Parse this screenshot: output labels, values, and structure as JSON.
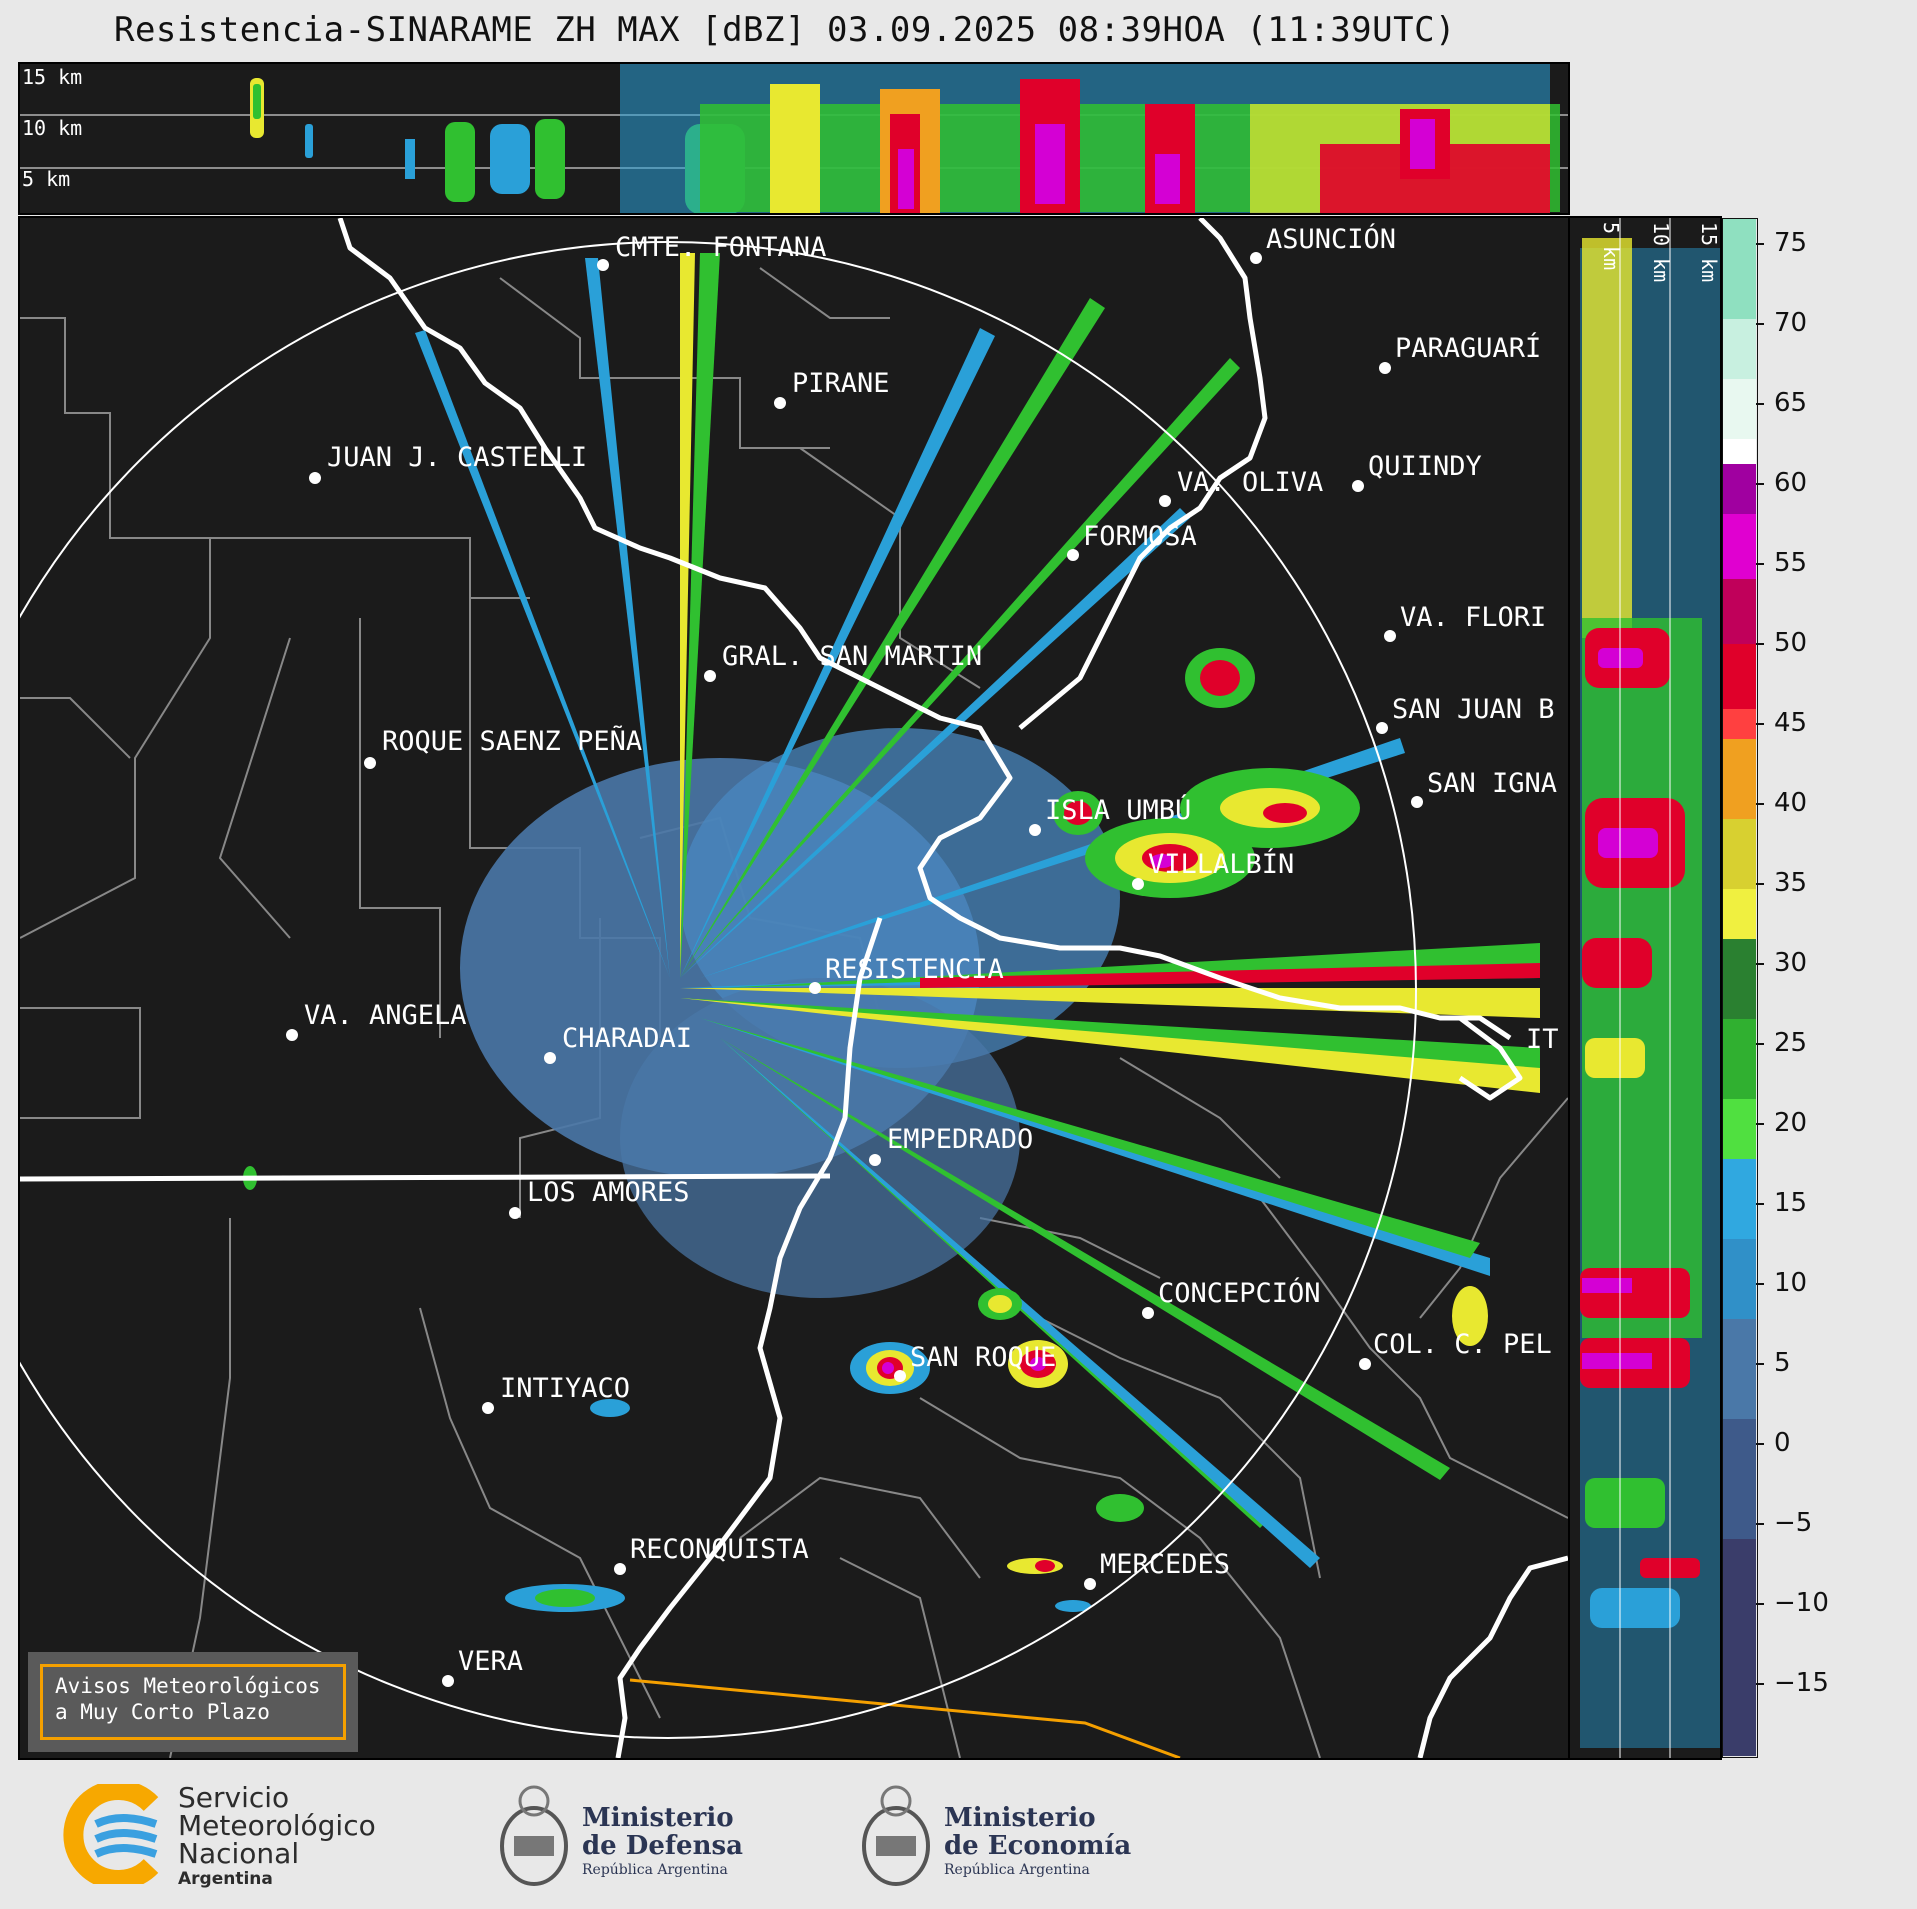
{
  "title": "Resistencia-SINARAME ZH MAX [dBZ] 03.09.2025 08:39HOA (11:39UTC)",
  "height_labels": [
    "15 km",
    "10 km",
    "5 km"
  ],
  "cities": [
    {
      "name": "CMTE. FONTANA"
    },
    {
      "name": "PIRANE"
    },
    {
      "name": "JUAN J. CASTELLI"
    },
    {
      "name": "GRAL. SAN MARTIN"
    },
    {
      "name": "ROQUE SAENZ PEÑA"
    },
    {
      "name": "VA. ANGELA"
    },
    {
      "name": "CHARADAI"
    },
    {
      "name": "RESISTENCIA"
    },
    {
      "name": "EMPEDRADO"
    },
    {
      "name": "LOS AMORES"
    },
    {
      "name": "INTIYACO"
    },
    {
      "name": "SAN ROQUE"
    },
    {
      "name": "RECONQUISTA"
    },
    {
      "name": "VERA"
    },
    {
      "name": "MERCEDES"
    },
    {
      "name": "CONCEPCIÓN"
    },
    {
      "name": "COL. C. PEL"
    },
    {
      "name": "ASUNCIÓN"
    },
    {
      "name": "PARAGUARÍ"
    },
    {
      "name": "VA. OLIVA"
    },
    {
      "name": "QUIINDY"
    },
    {
      "name": "FORMOSA"
    },
    {
      "name": "VA. FLORI"
    },
    {
      "name": "SAN JUAN B"
    },
    {
      "name": "SAN IGNA"
    },
    {
      "name": "ISLA UMBÚ"
    },
    {
      "name": "VILLALBÍN"
    },
    {
      "name": "IT"
    }
  ],
  "colorbar": {
    "unit": "dBZ",
    "ticks": [
      "75",
      "70",
      "65",
      "60",
      "55",
      "50",
      "45",
      "40",
      "35",
      "30",
      "25",
      "20",
      "15",
      "10",
      "5",
      "0",
      "−5",
      "−10",
      "−15"
    ],
    "range": [
      -19,
      76
    ],
    "colors": {
      "very_high": "#8fe0c0",
      "white_band": "#ffffff",
      "magenta": "#d400d4",
      "red": "#e0002a",
      "orange": "#f0a020",
      "yellow": "#e8e830",
      "green": "#30c030",
      "blue": "#2aa0d8",
      "steel": "#4a78a8",
      "navy": "#3a3d6a"
    }
  },
  "warning": {
    "line1": "Avisos Meteorológicos",
    "line2": "a Muy Corto Plazo"
  },
  "footer": {
    "smn": {
      "line1": "Servicio",
      "line2": "Meteorológico",
      "line3": "Nacional",
      "line4": "Argentina"
    },
    "defensa": {
      "line1": "Ministerio",
      "line2": "de Defensa",
      "line3": "República Argentina"
    },
    "economia": {
      "line1": "Ministerio",
      "line2": "de Economía",
      "line3": "República Argentina"
    }
  }
}
